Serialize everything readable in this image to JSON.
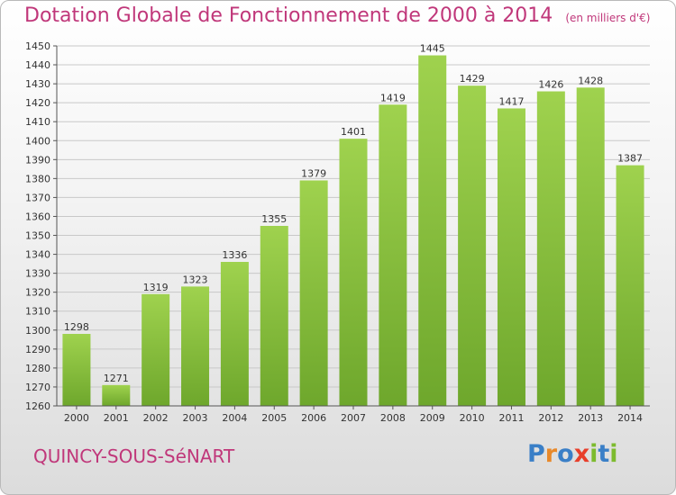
{
  "title": "Dotation Globale de Fonctionnement de 2000 à 2014",
  "unit_note": "(en milliers d'€)",
  "commune": "QUINCY-SOUS-SéNART",
  "brand": {
    "letters": [
      "P",
      "r",
      "o",
      "x",
      "i",
      "t",
      "i"
    ],
    "colors": [
      "#3a7fc7",
      "#e8892a",
      "#3a7fc7",
      "#e83e2a",
      "#7dbb2e",
      "#3a7fc7",
      "#7dbb2e"
    ]
  },
  "colors": {
    "bar_light": "#9fd24e",
    "bar_dark": "#6ea72c",
    "grid": "#c8c8c8"
  },
  "chart_data": {
    "type": "bar",
    "categories": [
      "2000",
      "2001",
      "2002",
      "2003",
      "2004",
      "2005",
      "2006",
      "2007",
      "2008",
      "2009",
      "2010",
      "2011",
      "2012",
      "2013",
      "2014"
    ],
    "values": [
      1298,
      1271,
      1319,
      1323,
      1336,
      1355,
      1379,
      1401,
      1419,
      1445,
      1429,
      1417,
      1426,
      1428,
      1387
    ],
    "ylim": [
      1260,
      1450
    ],
    "yticks": [
      1260,
      1270,
      1280,
      1290,
      1300,
      1310,
      1320,
      1330,
      1340,
      1350,
      1360,
      1370,
      1380,
      1390,
      1400,
      1410,
      1420,
      1430,
      1440,
      1450
    ],
    "grid": true
  }
}
